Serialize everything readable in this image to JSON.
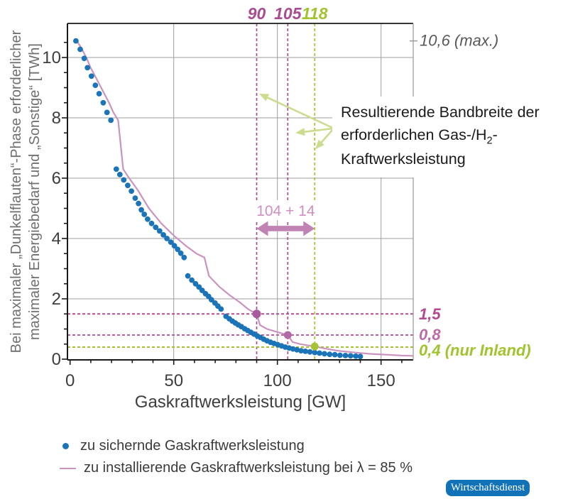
{
  "chart_data": {
    "type": "scatter",
    "xlabel": "Gaskraftwerksleistung [GW]",
    "ylabel_line1": "Bei maximaler „Dunkelflauten“-Phase erforderlicher",
    "ylabel_line2": "maximaler Energiebedarf und „Sonstige“ [TWh]",
    "xlim": [
      -2,
      165
    ],
    "ylim": [
      -0.05,
      11.15
    ],
    "x_ticks": [
      0,
      50,
      100,
      150
    ],
    "y_ticks": [
      0,
      2,
      4,
      6,
      8,
      10
    ],
    "grid": true,
    "legend_position": "bottom",
    "series": [
      {
        "name": "zu sichernde Gaskraftwerksleistung",
        "type": "scatter",
        "color": "#1b73b8",
        "points": [
          [
            2.8,
            10.55
          ],
          [
            4.9,
            10.27
          ],
          [
            6.8,
            9.97
          ],
          [
            8.4,
            9.66
          ],
          [
            10.3,
            9.38
          ],
          [
            12.2,
            9.08
          ],
          [
            14.0,
            8.8
          ],
          [
            16.0,
            8.5
          ],
          [
            17.8,
            8.18
          ],
          [
            19.7,
            7.92
          ],
          [
            22.3,
            6.3
          ],
          [
            24.0,
            6.12
          ],
          [
            25.9,
            5.94
          ],
          [
            27.8,
            5.76
          ],
          [
            29.6,
            5.57
          ],
          [
            31.4,
            5.34
          ],
          [
            33.0,
            5.16
          ],
          [
            34.4,
            4.95
          ],
          [
            35.8,
            4.8
          ],
          [
            37.4,
            4.64
          ],
          [
            39.3,
            4.5
          ],
          [
            41.3,
            4.37
          ],
          [
            43.2,
            4.25
          ],
          [
            45.0,
            4.12
          ],
          [
            46.7,
            4.0
          ],
          [
            48.6,
            3.88
          ],
          [
            50.3,
            3.76
          ],
          [
            51.9,
            3.64
          ],
          [
            53.4,
            3.51
          ],
          [
            55.0,
            3.37
          ],
          [
            56.8,
            2.76
          ],
          [
            58.7,
            2.62
          ],
          [
            60.5,
            2.5
          ],
          [
            62.2,
            2.39
          ],
          [
            63.7,
            2.28
          ],
          [
            65.3,
            2.17
          ],
          [
            66.8,
            2.08
          ],
          [
            68.2,
            1.97
          ],
          [
            69.9,
            1.86
          ],
          [
            71.3,
            1.76
          ],
          [
            72.8,
            1.66
          ],
          [
            75.2,
            1.42
          ],
          [
            76.8,
            1.34
          ],
          [
            78.3,
            1.26
          ],
          [
            79.7,
            1.2
          ],
          [
            81.1,
            1.14
          ],
          [
            82.6,
            1.08
          ],
          [
            84.2,
            1.01
          ],
          [
            85.7,
            0.95
          ],
          [
            87.2,
            0.89
          ],
          [
            88.8,
            0.83
          ],
          [
            90.3,
            0.77
          ],
          [
            91.8,
            0.72
          ],
          [
            93.4,
            0.66
          ],
          [
            95.0,
            0.61
          ],
          [
            96.7,
            0.56
          ],
          [
            98.4,
            0.52
          ],
          [
            100.2,
            0.48
          ],
          [
            102.0,
            0.44
          ],
          [
            103.8,
            0.4
          ],
          [
            105.6,
            0.37
          ],
          [
            107.5,
            0.34
          ],
          [
            109.4,
            0.31
          ],
          [
            111.4,
            0.28
          ],
          [
            113.5,
            0.26
          ],
          [
            115.7,
            0.24
          ],
          [
            118.0,
            0.22
          ],
          [
            120.3,
            0.2
          ],
          [
            122.7,
            0.18
          ],
          [
            125.2,
            0.16
          ],
          [
            127.7,
            0.15
          ],
          [
            130.2,
            0.13
          ],
          [
            132.8,
            0.12
          ],
          [
            135.3,
            0.11
          ],
          [
            137.8,
            0.1
          ],
          [
            140.0,
            0.09
          ]
        ]
      },
      {
        "name": "zu installierende Gaskraftwerksleistung bei λ = 85 %",
        "type": "line",
        "color": "#ca93c0",
        "points": [
          [
            3.3,
            10.55
          ],
          [
            5.8,
            10.27
          ],
          [
            8.0,
            9.97
          ],
          [
            9.9,
            9.66
          ],
          [
            12.1,
            9.38
          ],
          [
            14.4,
            9.08
          ],
          [
            16.5,
            8.8
          ],
          [
            18.8,
            8.5
          ],
          [
            20.9,
            8.18
          ],
          [
            23.2,
            7.92
          ],
          [
            25.6,
            6.3
          ],
          [
            28.5,
            6.0
          ],
          [
            32.7,
            5.6
          ],
          [
            38.0,
            5.0
          ],
          [
            44.0,
            4.5
          ],
          [
            50.0,
            4.1
          ],
          [
            56.0,
            3.75
          ],
          [
            61.0,
            3.5
          ],
          [
            64.8,
            3.37
          ],
          [
            67.0,
            2.76
          ],
          [
            72.0,
            2.4
          ],
          [
            77.0,
            2.12
          ],
          [
            82.0,
            1.88
          ],
          [
            85.8,
            1.66
          ],
          [
            90.0,
            1.5
          ],
          [
            91.6,
            1.13
          ],
          [
            95.0,
            1.0
          ],
          [
            100.0,
            0.9
          ],
          [
            105.0,
            0.8
          ],
          [
            107.3,
            0.57
          ],
          [
            111.0,
            0.5
          ],
          [
            114.5,
            0.46
          ],
          [
            118.0,
            0.42
          ],
          [
            123.0,
            0.35
          ],
          [
            129.0,
            0.28
          ],
          [
            136.0,
            0.23
          ],
          [
            144.0,
            0.18
          ],
          [
            152.0,
            0.15
          ],
          [
            160.0,
            0.12
          ],
          [
            165.5,
            0.11
          ]
        ]
      }
    ],
    "vlines": [
      {
        "x": 90,
        "label": "90",
        "color": "#a84d92"
      },
      {
        "x": 105,
        "label": "105",
        "color": "#a84d92"
      },
      {
        "x": 118,
        "label": "118",
        "color": "#a2c32f"
      }
    ],
    "hlines": [
      {
        "y": 1.5,
        "label": "1,5",
        "color": "#b94b94",
        "label_color": "#b34a90"
      },
      {
        "y": 0.8,
        "label": "0,8",
        "color": "#c25d9f",
        "label_color": "#bd6ba8"
      },
      {
        "y": 0.4,
        "label": "0,4 (nur Inland)",
        "color": "#a2c32f",
        "label_color": "#9fc42c"
      }
    ],
    "max_label": {
      "y": 10.55,
      "text": "10,6 (max.)",
      "color": "#58585a"
    },
    "markers": [
      {
        "x": 90,
        "y": 1.5,
        "color": "#a85a9c",
        "r": 6
      },
      {
        "x": 105,
        "y": 0.8,
        "color": "#b06aa6",
        "r": 5.5
      },
      {
        "x": 118,
        "y": 0.42,
        "color": "#a4c433",
        "r": 5.5
      }
    ],
    "range_arrow": {
      "label": "104 + 14",
      "from_x": 90,
      "to_x": 118,
      "y": 4.33,
      "arrow_color": "#c083b4",
      "label_color": "#cf8fc0"
    },
    "pointer_arrows": {
      "color": "#ccdc8d",
      "from": [
        127.2,
        7.65
      ],
      "to": [
        [
          91.2,
          8.8
        ],
        [
          108.7,
          7.5
        ],
        [
          118.3,
          6.96
        ]
      ]
    }
  },
  "annotation": {
    "line1": "Resultierende Bandbreite der",
    "line2_pre": "erforderlichen Gas-/H",
    "line2_sub": "2",
    "line2_post": "-",
    "line3": "Kraftwerksleistung"
  },
  "legend": [
    {
      "marker": "blue-dot",
      "label": "zu sichernde Gaskraftwerksleistung"
    },
    {
      "marker": "pink-line",
      "label": "zu installierende Gaskraftwerksleistung bei λ = 85 %"
    }
  ],
  "badge": {
    "label": "Wirtschaftsdienst"
  }
}
